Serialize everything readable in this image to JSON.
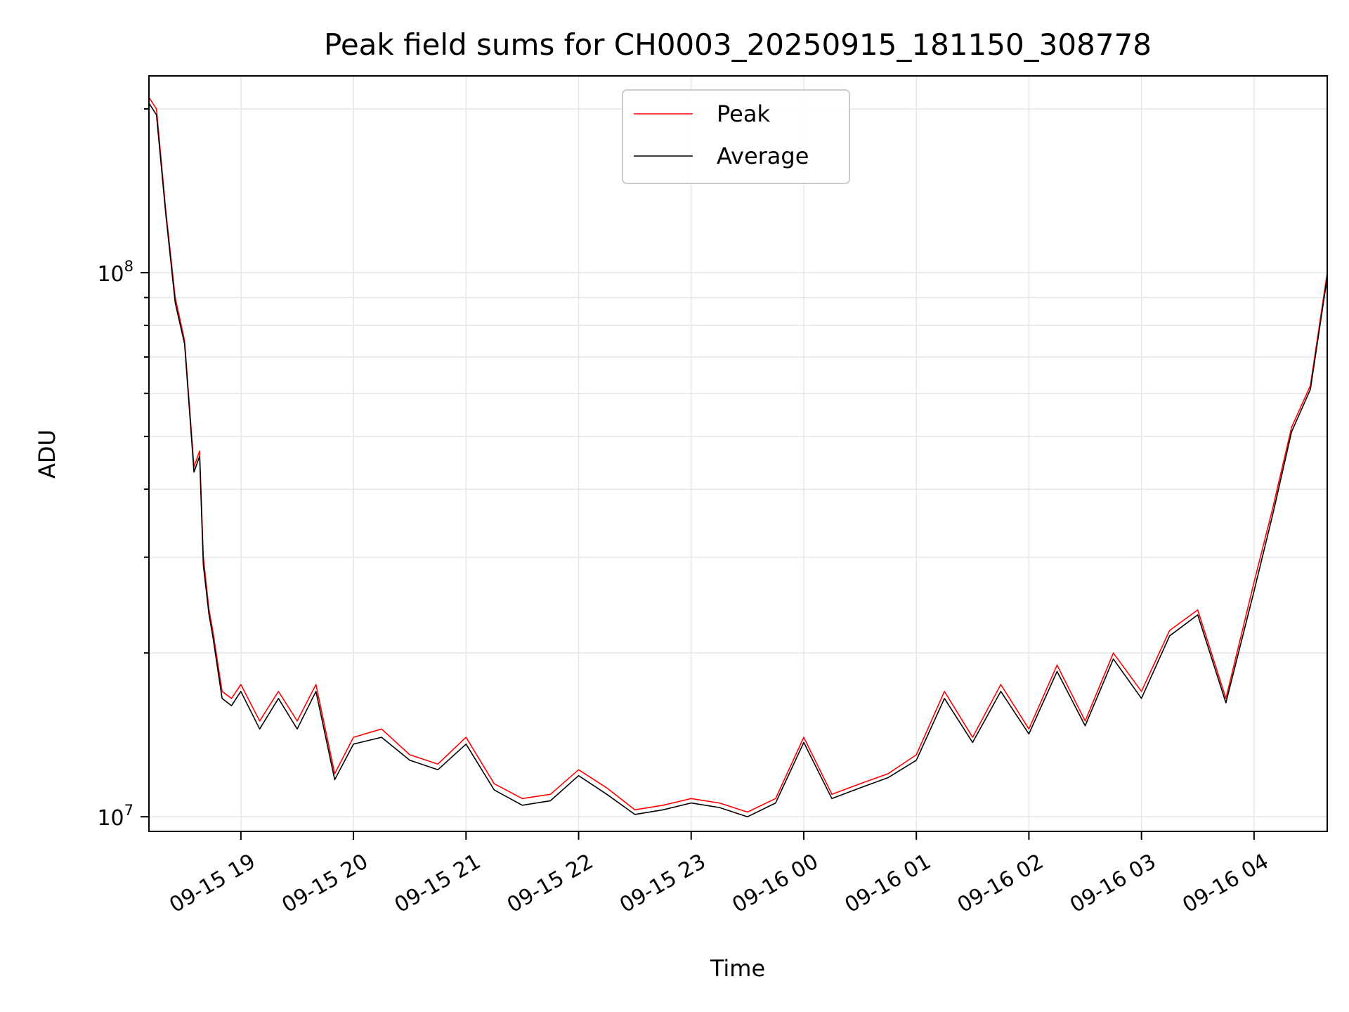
{
  "chart_data": {
    "type": "line",
    "title": "Peak field sums for CH0003_20250915_181150_308778",
    "xlabel": "Time",
    "ylabel": "ADU",
    "yscale": "log",
    "ylim": [
      9400000,
      230000000
    ],
    "xlim": [
      "2025-09-15 18:11",
      "2025-09-16 04:39"
    ],
    "grid": true,
    "legend_position": "top-center",
    "x_ticks": [
      "09-15 19",
      "09-15 20",
      "09-15 21",
      "09-15 22",
      "09-15 23",
      "09-16 00",
      "09-16 01",
      "09-16 02",
      "09-16 03",
      "09-16 04"
    ],
    "y_ticks": [
      "10^8",
      "10^7"
    ],
    "x": [
      "2025-09-15 18:11",
      "2025-09-15 18:15",
      "2025-09-15 18:20",
      "2025-09-15 18:25",
      "2025-09-15 18:30",
      "2025-09-15 18:35",
      "2025-09-15 18:38",
      "2025-09-15 18:40",
      "2025-09-15 18:43",
      "2025-09-15 18:45",
      "2025-09-15 18:50",
      "2025-09-15 18:55",
      "2025-09-15 19:00",
      "2025-09-15 19:10",
      "2025-09-15 19:20",
      "2025-09-15 19:30",
      "2025-09-15 19:40",
      "2025-09-15 19:50",
      "2025-09-15 20:00",
      "2025-09-15 20:15",
      "2025-09-15 20:30",
      "2025-09-15 20:45",
      "2025-09-15 21:00",
      "2025-09-15 21:15",
      "2025-09-15 21:30",
      "2025-09-15 21:45",
      "2025-09-15 22:00",
      "2025-09-15 22:15",
      "2025-09-15 22:30",
      "2025-09-15 22:45",
      "2025-09-15 23:00",
      "2025-09-15 23:15",
      "2025-09-15 23:30",
      "2025-09-15 23:45",
      "2025-09-16 00:00",
      "2025-09-16 00:15",
      "2025-09-16 00:30",
      "2025-09-16 00:45",
      "2025-09-16 01:00",
      "2025-09-16 01:15",
      "2025-09-16 01:30",
      "2025-09-16 01:45",
      "2025-09-16 02:00",
      "2025-09-16 02:15",
      "2025-09-16 02:30",
      "2025-09-16 02:45",
      "2025-09-16 03:00",
      "2025-09-16 03:15",
      "2025-09-16 03:30",
      "2025-09-16 03:45",
      "2025-09-16 04:00",
      "2025-09-16 04:10",
      "2025-09-16 04:20",
      "2025-09-16 04:30",
      "2025-09-16 04:39"
    ],
    "series": [
      {
        "name": "Peak",
        "color": "#ff0000",
        "values": [
          210000000,
          200000000,
          130000000,
          90000000,
          75000000,
          44000000,
          47000000,
          30000000,
          24000000,
          22000000,
          17000000,
          16500000,
          17500000,
          15000000,
          17000000,
          15000000,
          17500000,
          12000000,
          14000000,
          14500000,
          13000000,
          12500000,
          14000000,
          11500000,
          10800000,
          11000000,
          12200000,
          11300000,
          10300000,
          10500000,
          10800000,
          10600000,
          10200000,
          10800000,
          14000000,
          11000000,
          11500000,
          12000000,
          13000000,
          17000000,
          14000000,
          17500000,
          14500000,
          19000000,
          15000000,
          20000000,
          17000000,
          22000000,
          24000000,
          16500000,
          27000000,
          37000000,
          52000000,
          62000000,
          100000000
        ]
      },
      {
        "name": "Average",
        "color": "#000000",
        "values": [
          205000000,
          195000000,
          128000000,
          88000000,
          74000000,
          43000000,
          46000000,
          29000000,
          23500000,
          21500000,
          16500000,
          16000000,
          17000000,
          14500000,
          16500000,
          14500000,
          17000000,
          11700000,
          13600000,
          14000000,
          12700000,
          12200000,
          13600000,
          11200000,
          10500000,
          10700000,
          11900000,
          11000000,
          10100000,
          10300000,
          10600000,
          10400000,
          10000000,
          10600000,
          13700000,
          10800000,
          11300000,
          11800000,
          12700000,
          16500000,
          13700000,
          17000000,
          14200000,
          18500000,
          14700000,
          19500000,
          16500000,
          21500000,
          23500000,
          16200000,
          26000000,
          36000000,
          51000000,
          61000000,
          98000000
        ]
      }
    ]
  }
}
